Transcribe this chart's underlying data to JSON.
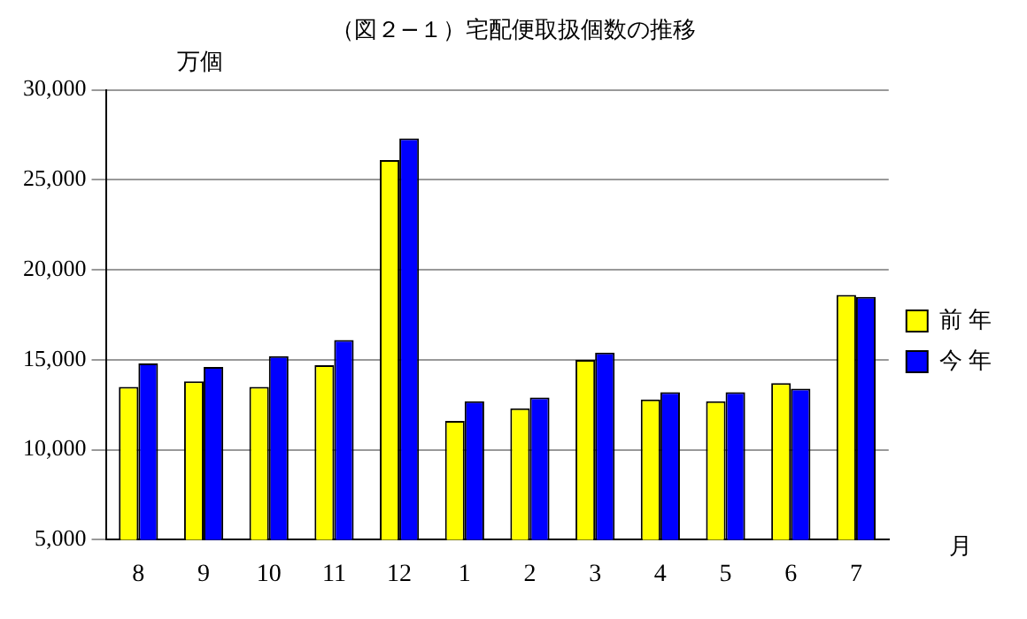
{
  "chart_data": {
    "type": "bar",
    "title": "（図２−１）宅配便取扱個数の推移",
    "ylabel": "万個",
    "xlabel": "月",
    "categories": [
      "8",
      "9",
      "10",
      "11",
      "12",
      "1",
      "2",
      "3",
      "4",
      "5",
      "6",
      "7"
    ],
    "series": [
      {
        "name": "前 年",
        "color": "#ffff00",
        "values": [
          13500,
          13800,
          13500,
          14700,
          26100,
          11600,
          12300,
          15000,
          12800,
          12700,
          13700,
          18600
        ]
      },
      {
        "name": "今 年",
        "color": "#0000ff",
        "values": [
          14800,
          14600,
          15200,
          16100,
          27300,
          12700,
          12900,
          15400,
          13200,
          13200,
          13400,
          18500
        ]
      }
    ],
    "ylim": [
      5000,
      30000
    ],
    "yticks": [
      {
        "value": 5000,
        "label": "5,000"
      },
      {
        "value": 10000,
        "label": "10,000"
      },
      {
        "value": 15000,
        "label": "15,000"
      },
      {
        "value": 20000,
        "label": "20,000"
      },
      {
        "value": 25000,
        "label": "25,000"
      },
      {
        "value": 30000,
        "label": "30,000"
      }
    ],
    "grid": "y",
    "legend": "right"
  }
}
